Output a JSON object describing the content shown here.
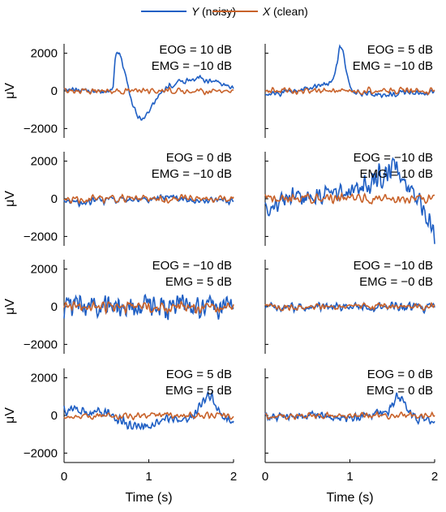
{
  "chart_data": {
    "type": "line",
    "legend": {
      "placement": "top",
      "entries": [
        {
          "symbol": "Y",
          "text": "(noisy)",
          "color": "#1f5fc4"
        },
        {
          "symbol": "X",
          "text": "(clean)",
          "color": "#c8622a"
        }
      ]
    },
    "xlabel": "Time (s)",
    "ylabel": "μV",
    "xlim": [
      0,
      2
    ],
    "ylim": [
      -2500,
      2500
    ],
    "xticks": [
      0,
      1,
      2
    ],
    "yticks": [
      2000,
      0,
      -2000
    ],
    "xtick_labels": [
      "0",
      "1",
      "2"
    ],
    "ytick_labels": [
      "2000",
      "0",
      "−2000"
    ],
    "grid": false,
    "panels": [
      {
        "row": 0,
        "col": 0,
        "annotation": [
          "EOG = 10 dB",
          "EMG = −10 dB"
        ],
        "noisy_anchors": [
          [
            0,
            50
          ],
          [
            0.1,
            80
          ],
          [
            0.2,
            60
          ],
          [
            0.3,
            20
          ],
          [
            0.4,
            -50
          ],
          [
            0.5,
            -100
          ],
          [
            0.58,
            200
          ],
          [
            0.6,
            1700
          ],
          [
            0.63,
            2100
          ],
          [
            0.67,
            1950
          ],
          [
            0.7,
            1300
          ],
          [
            0.75,
            300
          ],
          [
            0.8,
            -700
          ],
          [
            0.85,
            -1200
          ],
          [
            0.9,
            -1500
          ],
          [
            0.95,
            -1450
          ],
          [
            1.0,
            -1100
          ],
          [
            1.05,
            -700
          ],
          [
            1.1,
            -300
          ],
          [
            1.2,
            100
          ],
          [
            1.3,
            400
          ],
          [
            1.4,
            500
          ],
          [
            1.5,
            600
          ],
          [
            1.55,
            550
          ],
          [
            1.6,
            700
          ],
          [
            1.7,
            600
          ],
          [
            1.8,
            500
          ],
          [
            1.9,
            300
          ],
          [
            2.0,
            100
          ]
        ],
        "noisy_noise": 110,
        "clean_noise": 190
      },
      {
        "row": 0,
        "col": 1,
        "annotation": [
          "EOG = 5 dB",
          "EMG = −10 dB"
        ],
        "noisy_anchors": [
          [
            0,
            -100
          ],
          [
            0.1,
            -200
          ],
          [
            0.3,
            0
          ],
          [
            0.5,
            100
          ],
          [
            0.6,
            200
          ],
          [
            0.7,
            300
          ],
          [
            0.8,
            600
          ],
          [
            0.85,
            1500
          ],
          [
            0.88,
            2400
          ],
          [
            0.92,
            2000
          ],
          [
            0.97,
            800
          ],
          [
            1.0,
            200
          ],
          [
            1.05,
            -100
          ],
          [
            1.1,
            0
          ],
          [
            1.2,
            -100
          ],
          [
            1.3,
            -200
          ],
          [
            1.4,
            -250
          ],
          [
            1.6,
            -150
          ],
          [
            1.8,
            -100
          ],
          [
            2.0,
            -50
          ]
        ],
        "noisy_noise": 110,
        "clean_noise": 200
      },
      {
        "row": 1,
        "col": 0,
        "annotation": [
          "EOG = 0 dB",
          "EMG = −10 dB"
        ],
        "noisy_anchors": [
          [
            0,
            -100
          ],
          [
            0.2,
            -150
          ],
          [
            0.4,
            -100
          ],
          [
            0.6,
            -50
          ],
          [
            0.8,
            -60
          ],
          [
            1.0,
            -50
          ],
          [
            1.1,
            50
          ],
          [
            1.2,
            150
          ],
          [
            1.25,
            250
          ],
          [
            1.3,
            50
          ],
          [
            1.4,
            -50
          ],
          [
            1.5,
            -150
          ],
          [
            1.6,
            -150
          ],
          [
            1.7,
            -100
          ],
          [
            1.8,
            -50
          ],
          [
            1.9,
            -100
          ],
          [
            2.0,
            -100
          ]
        ],
        "noisy_noise": 140,
        "clean_noise": 220
      },
      {
        "row": 1,
        "col": 1,
        "annotation": [
          "EOG = −10 dB",
          "EMG = 10 dB"
        ],
        "noisy_anchors": [
          [
            0,
            -400
          ],
          [
            0.2,
            -200
          ],
          [
            0.4,
            0
          ],
          [
            0.6,
            200
          ],
          [
            0.8,
            300
          ],
          [
            1.0,
            200
          ],
          [
            1.1,
            600
          ],
          [
            1.3,
            1000
          ],
          [
            1.4,
            1300
          ],
          [
            1.5,
            1600
          ],
          [
            1.55,
            1800
          ],
          [
            1.65,
            900
          ],
          [
            1.8,
            200
          ],
          [
            1.9,
            -600
          ],
          [
            1.95,
            -1300
          ],
          [
            2.0,
            -2200
          ]
        ],
        "noisy_noise": 650,
        "clean_noise": 270
      },
      {
        "row": 2,
        "col": 0,
        "annotation": [
          "EOG = −10 dB",
          "EMG = 5 dB"
        ],
        "noisy_anchors": [
          [
            0,
            0
          ],
          [
            0.5,
            0
          ],
          [
            1.0,
            0
          ],
          [
            1.5,
            0
          ],
          [
            2.0,
            0
          ]
        ],
        "noisy_noise": 720,
        "clean_noise": 330
      },
      {
        "row": 2,
        "col": 1,
        "annotation": [
          "EOG = −10 dB",
          "EMG = −0 dB"
        ],
        "noisy_anchors": [
          [
            0,
            0
          ],
          [
            0.5,
            0
          ],
          [
            1.0,
            0
          ],
          [
            1.5,
            0
          ],
          [
            2.0,
            0
          ]
        ],
        "noisy_noise": 260,
        "clean_noise": 200
      },
      {
        "row": 3,
        "col": 0,
        "annotation": [
          "EOG = 5 dB",
          "EMG = 5 dB"
        ],
        "noisy_anchors": [
          [
            0,
            400
          ],
          [
            0.2,
            300
          ],
          [
            0.4,
            200
          ],
          [
            0.5,
            100
          ],
          [
            0.6,
            0
          ],
          [
            0.7,
            -300
          ],
          [
            0.8,
            -500
          ],
          [
            0.9,
            -600
          ],
          [
            1.0,
            -550
          ],
          [
            1.1,
            -450
          ],
          [
            1.2,
            -300
          ],
          [
            1.4,
            -200
          ],
          [
            1.5,
            0
          ],
          [
            1.6,
            500
          ],
          [
            1.65,
            800
          ],
          [
            1.7,
            1100
          ],
          [
            1.75,
            900
          ],
          [
            1.8,
            300
          ],
          [
            1.9,
            -200
          ],
          [
            2.0,
            -400
          ]
        ],
        "noisy_noise": 290,
        "clean_noise": 220
      },
      {
        "row": 3,
        "col": 1,
        "annotation": [
          "EOG = 0 dB",
          "EMG = 0 dB"
        ],
        "noisy_anchors": [
          [
            0,
            0
          ],
          [
            0.4,
            0
          ],
          [
            0.8,
            -50
          ],
          [
            1.0,
            -100
          ],
          [
            1.2,
            0
          ],
          [
            1.4,
            100
          ],
          [
            1.5,
            500
          ],
          [
            1.55,
            1100
          ],
          [
            1.6,
            800
          ],
          [
            1.7,
            200
          ],
          [
            1.8,
            -100
          ],
          [
            2.0,
            -300
          ]
        ],
        "noisy_noise": 270,
        "clean_noise": 200
      }
    ]
  }
}
